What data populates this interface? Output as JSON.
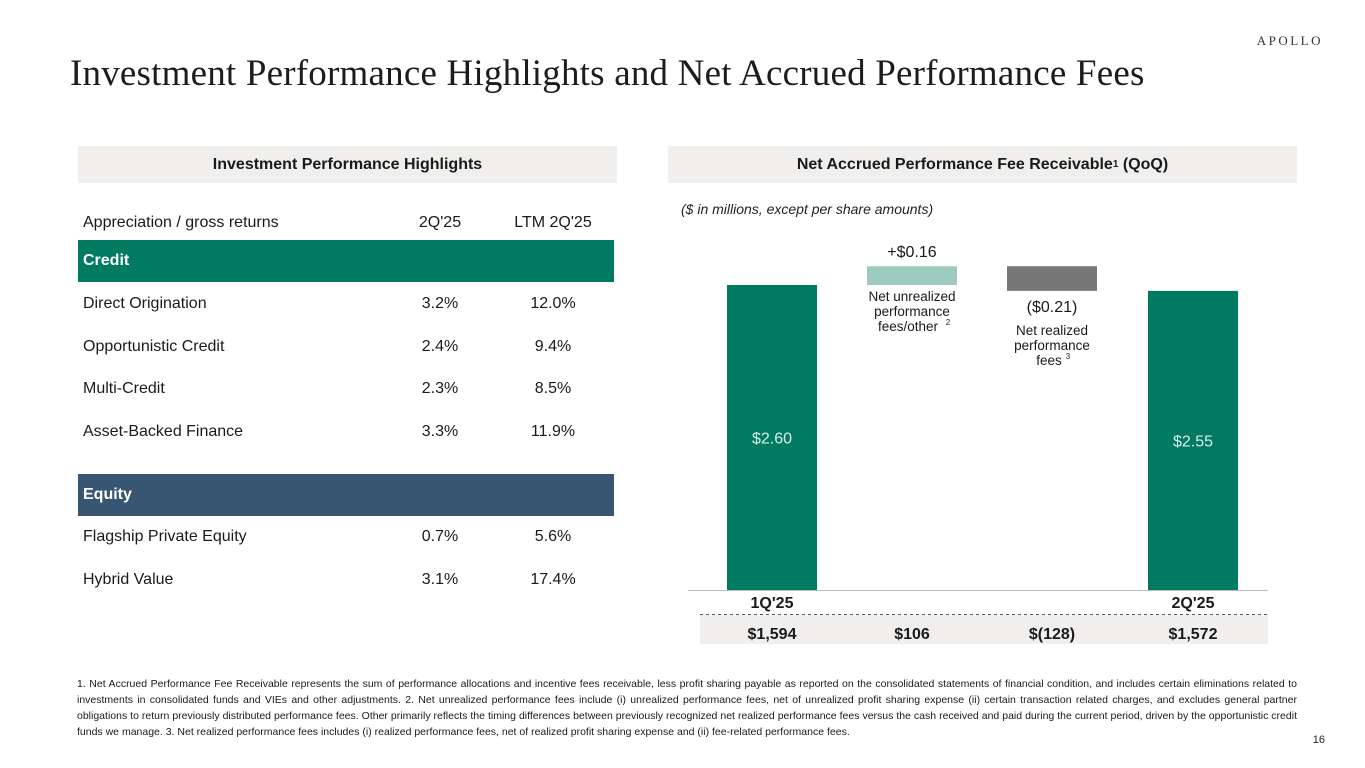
{
  "brand": {
    "logo_text": "APOLLO"
  },
  "page": {
    "title": "Investment Performance Highlights and Net Accrued Performance Fees",
    "number": "16"
  },
  "left_panel": {
    "header": "Investment Performance Highlights",
    "columns": [
      "Appreciation / gross returns",
      "2Q'25",
      "LTM 2Q'25"
    ],
    "sections": [
      {
        "label": "Credit",
        "color": "#007a60",
        "rows": [
          {
            "name": "Direct Origination",
            "q": "3.2%",
            "ltm": "12.0%"
          },
          {
            "name": "Opportunistic Credit",
            "q": "2.4%",
            "ltm": "9.4%"
          },
          {
            "name": "Multi-Credit",
            "q": "2.3%",
            "ltm": "8.5%"
          },
          {
            "name": "Asset-Backed Finance",
            "q": "3.3%",
            "ltm": "11.9%"
          }
        ]
      },
      {
        "label": "Equity",
        "color": "#385572",
        "rows": [
          {
            "name": "Flagship Private Equity",
            "q": "0.7%",
            "ltm": "5.6%"
          },
          {
            "name": "Hybrid Value",
            "q": "3.1%",
            "ltm": "17.4%"
          }
        ]
      }
    ]
  },
  "right_panel": {
    "header_main": "Net Accrued Performance Fee Receivable",
    "header_sup": "1",
    "header_suffix": " (QoQ)",
    "units_note": "($ in millions, except per share amounts)"
  },
  "chart_data": {
    "type": "waterfall",
    "unit": "per share",
    "ylim": [
      0,
      2.8
    ],
    "colors": {
      "total": "#007a60",
      "increase": "#9ecbc0",
      "decrease": "#777777"
    },
    "steps": [
      {
        "kind": "total",
        "value": 2.6,
        "label": "$2.60",
        "x_label": "1Q'25",
        "total": "$1,594"
      },
      {
        "kind": "increase",
        "value": 0.16,
        "label": "+$0.16",
        "desc": [
          "Net unrealized",
          "performance",
          "fees/other"
        ],
        "desc_sup": "2",
        "total": "$106"
      },
      {
        "kind": "decrease",
        "value": -0.21,
        "label": "($0.21)",
        "desc": [
          "Net realized",
          "performance",
          "fees"
        ],
        "desc_sup": "3",
        "total": "$(128)"
      },
      {
        "kind": "total",
        "value": 2.55,
        "label": "$2.55",
        "x_label": "2Q'25",
        "total": "$1,572"
      }
    ]
  },
  "footnote": "1. Net Accrued Performance Fee Receivable represents the sum of performance allocations and incentive fees receivable, less profit sharing payable as reported on the consolidated statements of financial condition, and includes certain eliminations related to investments in consolidated funds and VIEs and other adjustments. 2. Net unrealized performance fees include (i) unrealized performance fees, net of unrealized profit sharing expense (ii) certain transaction related charges, and excludes general partner obligations to return previously distributed performance fees. Other primarily reflects the timing differences between previously recognized net realized performance fees versus the cash received and paid during the current period, driven by the opportunistic credit funds we manage. 3. Net realized performance fees includes (i) realized performance fees, net of realized profit sharing expense and (ii) fee-related performance fees."
}
